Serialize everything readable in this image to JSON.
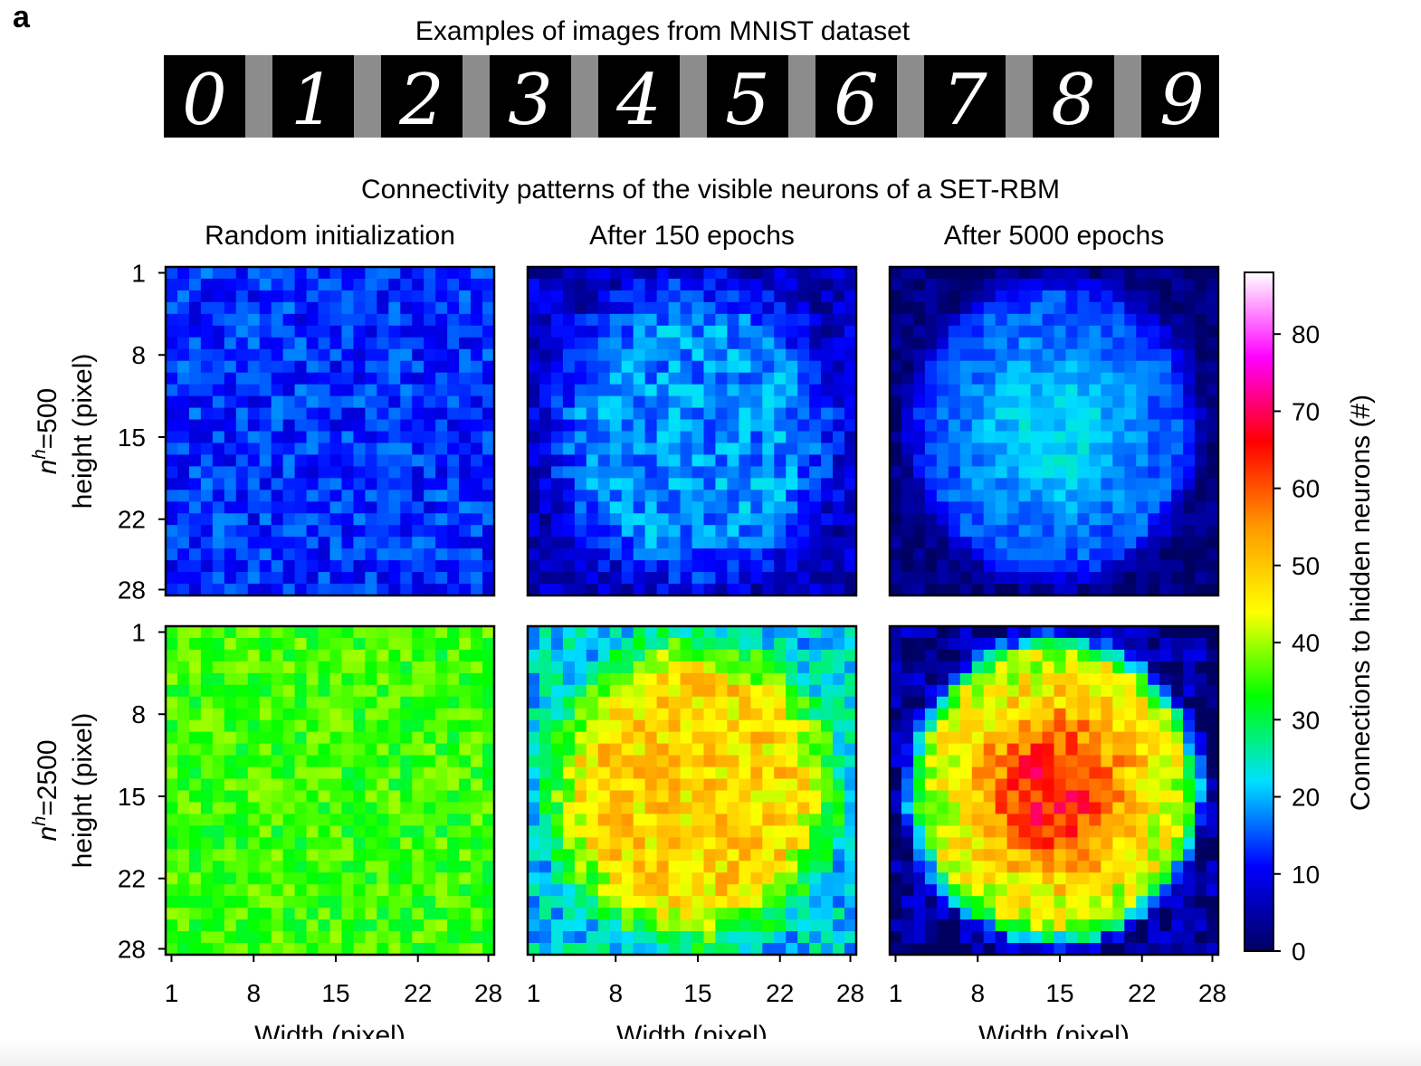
{
  "panel_letter": "a",
  "mnist": {
    "title": "Examples of images from MNIST dataset",
    "digits": [
      "0",
      "1",
      "2",
      "3",
      "4",
      "5",
      "6",
      "7",
      "8",
      "9"
    ]
  },
  "figure_title": "Connectivity patterns of the visible neurons of a SET-RBM",
  "chart_data": {
    "type": "heatmap",
    "column_titles": [
      "Random initialization",
      "After 150 epochs",
      "After 5000 epochs"
    ],
    "row_labels": [
      {
        "italic": "n",
        "sup": "h",
        "rest": "=500",
        "axis": "height (pixel)"
      },
      {
        "italic": "n",
        "sup": "h",
        "rest": "=2500",
        "axis": "height (pixel)"
      }
    ],
    "xlabel": "Width (pixel)",
    "ylabel": "height (pixel)",
    "grid_size": [
      28,
      28
    ],
    "x_ticks": [
      1,
      8,
      15,
      22,
      28
    ],
    "y_ticks": [
      1,
      8,
      15,
      22,
      28
    ],
    "colorbar": {
      "label": "Connections to hidden neurons (#)",
      "range": [
        0,
        88
      ],
      "ticks": [
        0,
        10,
        20,
        30,
        40,
        50,
        60,
        70,
        80
      ],
      "colors": [
        "#000060",
        "#0000ff",
        "#00e0ff",
        "#00ff00",
        "#ffff00",
        "#ff9900",
        "#ff0000",
        "#ff00ff",
        "#ffffff"
      ]
    },
    "panels": [
      {
        "row": 0,
        "col": 0,
        "base": 13,
        "center": 13,
        "mode": "uniform",
        "noise": 5
      },
      {
        "row": 0,
        "col": 1,
        "base": 7,
        "center": 18,
        "mode": "blob",
        "noise": 5
      },
      {
        "row": 0,
        "col": 2,
        "base": 2,
        "center": 22,
        "mode": "blob-sharp",
        "noise": 3
      },
      {
        "row": 1,
        "col": 0,
        "base": 35,
        "center": 35,
        "mode": "uniform",
        "noise": 5
      },
      {
        "row": 1,
        "col": 1,
        "base": 22,
        "center": 48,
        "mode": "blob",
        "noise": 7
      },
      {
        "row": 1,
        "col": 2,
        "base": 3,
        "center": 64,
        "mode": "blob-sharp",
        "noise": 7
      }
    ]
  }
}
